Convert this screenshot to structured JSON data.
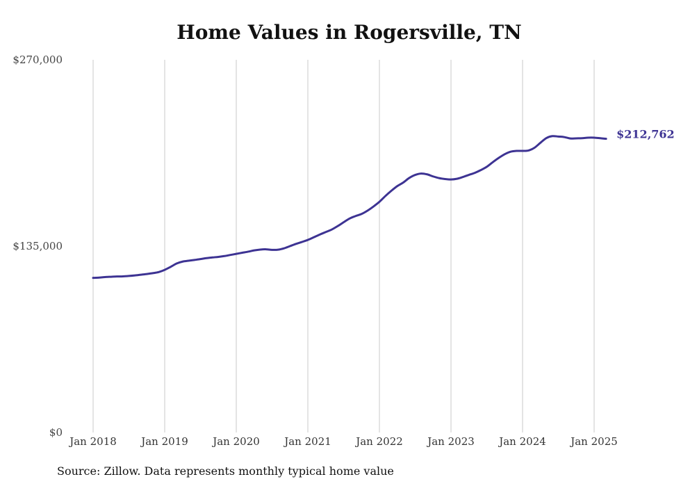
{
  "chart_data": {
    "type": "line",
    "title": "Home Values in Rogersville, TN",
    "xlabel": "",
    "ylabel": "",
    "ylim": [
      0,
      270000
    ],
    "yticks": [
      0,
      135000,
      270000
    ],
    "ytick_labels": [
      "$0",
      "$135,000",
      "$270,000"
    ],
    "xticks": [
      2018,
      2019,
      2020,
      2021,
      2022,
      2023,
      2024,
      2025
    ],
    "xtick_labels": [
      "Jan 2018",
      "Jan 2019",
      "Jan 2020",
      "Jan 2021",
      "Jan 2022",
      "Jan 2023",
      "Jan 2024",
      "Jan 2025"
    ],
    "grid": "vertical",
    "line_color": "#3d3393",
    "end_label": "$212,762",
    "series": [
      {
        "x": [
          "2018-01",
          "2018-02",
          "2018-03",
          "2018-04",
          "2018-05",
          "2018-06",
          "2018-07",
          "2018-08",
          "2018-09",
          "2018-10",
          "2018-11",
          "2018-12",
          "2019-01",
          "2019-02",
          "2019-03",
          "2019-04",
          "2019-05",
          "2019-06",
          "2019-07",
          "2019-08",
          "2019-09",
          "2019-10",
          "2019-11",
          "2019-12",
          "2020-01",
          "2020-02",
          "2020-03",
          "2020-04",
          "2020-05",
          "2020-06",
          "2020-07",
          "2020-08",
          "2020-09",
          "2020-10",
          "2020-11",
          "2020-12",
          "2021-01",
          "2021-02",
          "2021-03",
          "2021-04",
          "2021-05",
          "2021-06",
          "2021-07",
          "2021-08",
          "2021-09",
          "2021-10",
          "2021-11",
          "2021-12",
          "2022-01",
          "2022-02",
          "2022-03",
          "2022-04",
          "2022-05",
          "2022-06",
          "2022-07",
          "2022-08",
          "2022-09",
          "2022-10",
          "2022-11",
          "2022-12",
          "2023-01",
          "2023-02",
          "2023-03",
          "2023-04",
          "2023-05",
          "2023-06",
          "2023-07",
          "2023-08",
          "2023-09",
          "2023-10",
          "2023-11",
          "2023-12",
          "2024-01",
          "2024-02",
          "2024-03",
          "2024-04",
          "2024-05",
          "2024-06",
          "2024-07",
          "2024-08",
          "2024-09",
          "2024-10",
          "2024-11",
          "2024-12",
          "2025-01",
          "2025-02",
          "2025-03"
        ],
        "values": [
          112000,
          112200,
          112600,
          112800,
          113000,
          113100,
          113400,
          113800,
          114300,
          114800,
          115400,
          116200,
          117800,
          120000,
          122400,
          123800,
          124400,
          125000,
          125600,
          126300,
          126800,
          127200,
          127800,
          128600,
          129400,
          130200,
          131000,
          131900,
          132500,
          132700,
          132300,
          132400,
          133400,
          135000,
          136600,
          138000,
          139500,
          141400,
          143400,
          145200,
          147000,
          149500,
          152300,
          155000,
          156800,
          158300,
          160700,
          163700,
          167100,
          171300,
          175100,
          178500,
          181100,
          184400,
          186600,
          187600,
          187000,
          185500,
          184300,
          183600,
          183300,
          183800,
          185100,
          186600,
          188100,
          190100,
          192500,
          195800,
          198900,
          201600,
          203400,
          204000,
          204000,
          204300,
          206300,
          209900,
          213300,
          214700,
          214400,
          214000,
          213000,
          213100,
          213200,
          213600,
          213600,
          213200,
          212762
        ]
      }
    ]
  },
  "source": "Source: Zillow. Data represents monthly typical home value"
}
